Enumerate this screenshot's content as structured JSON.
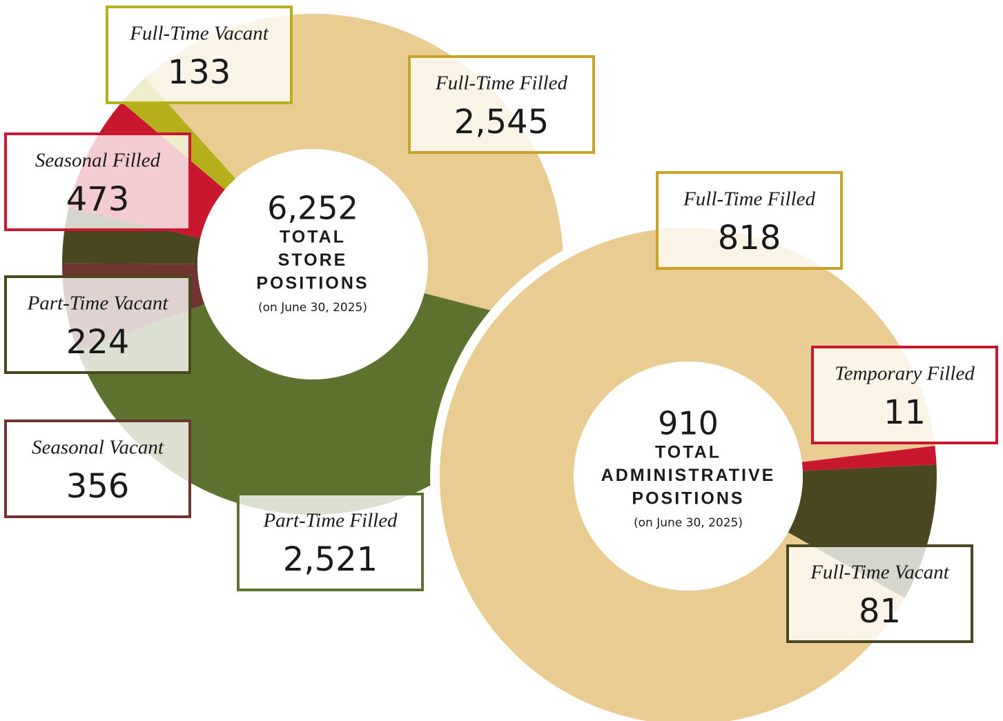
{
  "chart_data": [
    {
      "type": "donut",
      "center_value": "6,252",
      "center_lines": [
        "TOTAL",
        "STORE",
        "POSITIONS"
      ],
      "center_note": "(on June 30, 2025)",
      "categories": [
        "Full-Time Filled",
        "Part-Time Filled",
        "Seasonal Vacant",
        "Part-Time Vacant",
        "Seasonal Filled",
        "Full-Time Vacant"
      ],
      "values": [
        2545,
        2521,
        356,
        224,
        473,
        133
      ],
      "value_labels": [
        "2,545",
        "2,521",
        "356",
        "224",
        "473",
        "133"
      ],
      "colors": [
        "#e9cc91",
        "#5c722e",
        "#6f3430",
        "#4a461f",
        "#c8172f",
        "#b5af1b"
      ],
      "label_colors": [
        "#c9a227",
        "#5c722e",
        "#6f3430",
        "#4a461f",
        "#c8172f",
        "#b5af1b"
      ]
    },
    {
      "type": "donut",
      "center_value": "910",
      "center_lines": [
        "TOTAL",
        "ADMINISTRATIVE",
        "POSITIONS"
      ],
      "center_note": "(on June 30, 2025)",
      "categories": [
        "Full-Time Filled",
        "Temporary Filled",
        "Full-Time Vacant"
      ],
      "values": [
        818,
        11,
        81
      ],
      "value_labels": [
        "818",
        "11",
        "81"
      ],
      "colors": [
        "#e9cc91",
        "#c8172f",
        "#4a461f"
      ],
      "label_colors": [
        "#c9a227",
        "#c8172f",
        "#4a461f"
      ]
    }
  ]
}
